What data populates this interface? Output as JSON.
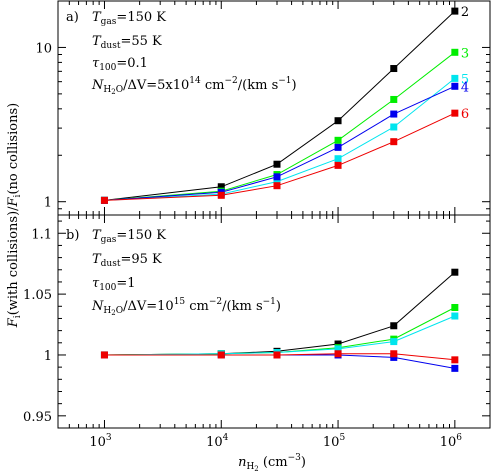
{
  "chart_data": {
    "type": "line",
    "shared_x": {
      "scale": "log",
      "xlim": [
        400,
        2000000
      ],
      "ticks": [
        1000,
        10000,
        100000,
        1000000
      ],
      "tick_labels": [
        {
          "base": "10",
          "exp": "3"
        },
        {
          "base": "10",
          "exp": "4"
        },
        {
          "base": "10",
          "exp": "5"
        },
        {
          "base": "10",
          "exp": "6"
        }
      ],
      "xlabel": {
        "var": "n",
        "sub": "H",
        "subsub": "2",
        "units": " (cm",
        "units_exp": "−3",
        "units_close": ")"
      }
    },
    "ylabel": {
      "prefix": "F",
      "sub_i": "i",
      "mid": "(with collisions)/",
      "prefix2": "F",
      "sub_i2": "i",
      "end": "(no collisions)"
    },
    "panels": [
      {
        "panel_label": "a)",
        "annotations": {
          "tgas": {
            "var": "T",
            "sub": "gas",
            "value": "=150 K"
          },
          "tdust": {
            "var": "T",
            "sub": "dust",
            "value": "=55 K"
          },
          "tau": {
            "var": "τ",
            "sub": "100",
            "value": "=0.1"
          },
          "nh2o": {
            "var": "N",
            "sub": "H",
            "subsub": "2",
            "sub2": "O",
            "mid": "/ΔV=5x10",
            "exp": "14",
            "after": " cm",
            "exp2": "−2",
            "end": "/(km s",
            "exp3": "−1",
            "close": ")"
          }
        },
        "scale": "log",
        "ylim": [
          0.82,
          20
        ],
        "yticks": [
          1,
          10
        ],
        "ytick_labels": [
          "1",
          "10"
        ],
        "x": [
          1000,
          10000,
          30000,
          100000,
          300000,
          1000000
        ],
        "series": [
          {
            "name": "2",
            "color": "#000000",
            "values": [
              1.02,
              1.25,
              1.75,
              3.35,
              7.3,
              17.2
            ]
          },
          {
            "name": "3",
            "color": "#00ee00",
            "values": [
              1.02,
              1.17,
              1.5,
              2.5,
              4.6,
              9.3
            ]
          },
          {
            "name": "5",
            "color": "#00e5ee",
            "values": [
              1.02,
              1.12,
              1.35,
              1.9,
              3.05,
              6.3
            ]
          },
          {
            "name": "4",
            "color": "#0000ee",
            "values": [
              1.02,
              1.15,
              1.45,
              2.25,
              3.7,
              5.6
            ]
          },
          {
            "name": "6",
            "color": "#ee0000",
            "values": [
              1.02,
              1.1,
              1.27,
              1.72,
              2.45,
              3.75
            ]
          }
        ]
      },
      {
        "panel_label": "b)",
        "annotations": {
          "tgas": {
            "var": "T",
            "sub": "gas",
            "value": "=150 K"
          },
          "tdust": {
            "var": "T",
            "sub": "dust",
            "value": "=95 K"
          },
          "tau": {
            "var": "τ",
            "sub": "100",
            "value": "=1"
          },
          "nh2o": {
            "var": "N",
            "sub": "H",
            "subsub": "2",
            "sub2": "O",
            "mid": "/ΔV=10",
            "exp": "15",
            "after": " cm",
            "exp2": "−2",
            "end": "/(km s",
            "exp3": "−1",
            "close": ")"
          }
        },
        "scale": "linear",
        "ylim": [
          0.94,
          1.115
        ],
        "yticks": [
          0.95,
          1,
          1.05,
          1.1
        ],
        "ytick_labels": [
          "0.95",
          "1",
          "1.05",
          "1.1"
        ],
        "x": [
          1000,
          10000,
          30000,
          100000,
          300000,
          1000000
        ],
        "series": [
          {
            "name": "2",
            "color": "#000000",
            "values": [
              1.0,
              1.001,
              1.003,
              1.009,
              1.024,
              1.068
            ]
          },
          {
            "name": "3",
            "color": "#00ee00",
            "values": [
              1.0,
              1.001,
              1.002,
              1.006,
              1.013,
              1.039
            ]
          },
          {
            "name": "5",
            "color": "#00e5ee",
            "values": [
              1.0,
              1.001,
              1.002,
              1.005,
              1.011,
              1.032
            ]
          },
          {
            "name": "4",
            "color": "#0000ee",
            "values": [
              1.0,
              1.0,
              1.0,
              1.0,
              0.998,
              0.989
            ]
          },
          {
            "name": "6",
            "color": "#ee0000",
            "values": [
              1.0,
              1.0,
              1.0,
              1.001,
              1.001,
              0.996
            ]
          }
        ]
      }
    ]
  }
}
